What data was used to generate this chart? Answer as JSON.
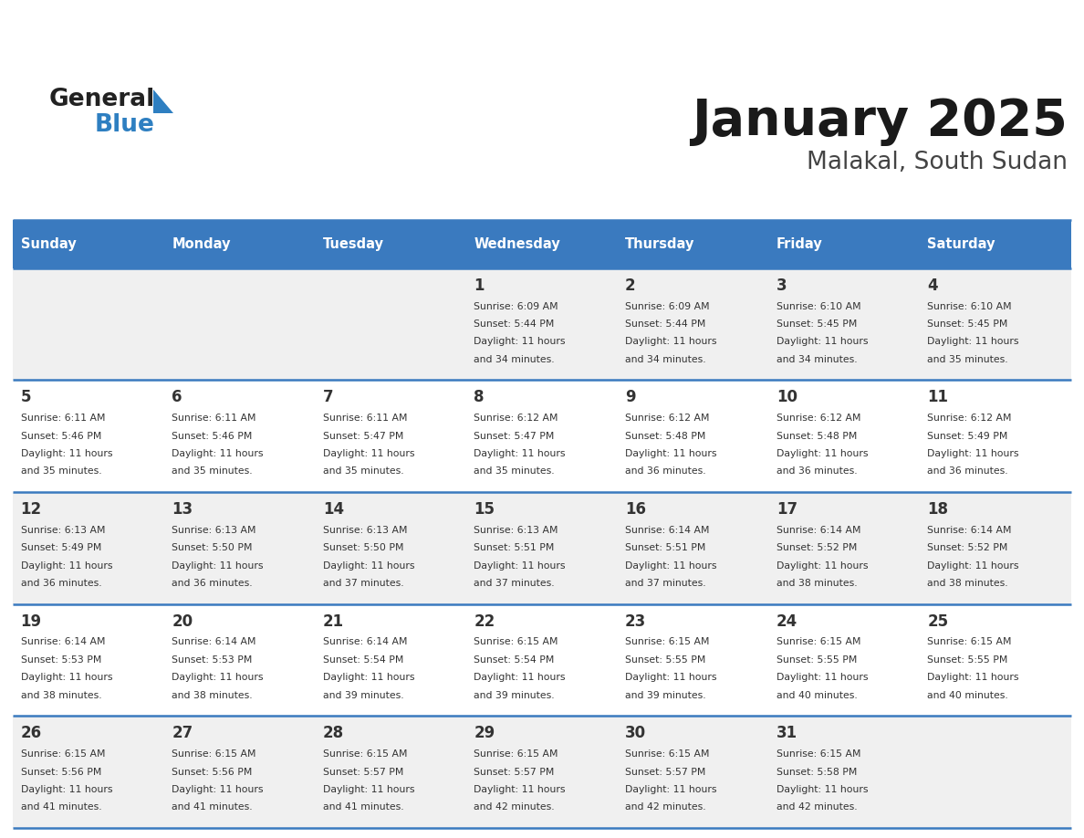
{
  "title": "January 2025",
  "subtitle": "Malakal, South Sudan",
  "header_bg": "#3a7abf",
  "header_text_color": "#ffffff",
  "row_bg_odd": "#f0f0f0",
  "row_bg_even": "#ffffff",
  "cell_text_color": "#333333",
  "border_color": "#3a7abf",
  "days_of_week": [
    "Sunday",
    "Monday",
    "Tuesday",
    "Wednesday",
    "Thursday",
    "Friday",
    "Saturday"
  ],
  "weeks": [
    [
      {
        "day": null,
        "info": null
      },
      {
        "day": null,
        "info": null
      },
      {
        "day": null,
        "info": null
      },
      {
        "day": 1,
        "info": {
          "sunrise": "6:09 AM",
          "sunset": "5:44 PM",
          "daylight_line1": "11 hours",
          "daylight_line2": "and 34 minutes."
        }
      },
      {
        "day": 2,
        "info": {
          "sunrise": "6:09 AM",
          "sunset": "5:44 PM",
          "daylight_line1": "11 hours",
          "daylight_line2": "and 34 minutes."
        }
      },
      {
        "day": 3,
        "info": {
          "sunrise": "6:10 AM",
          "sunset": "5:45 PM",
          "daylight_line1": "11 hours",
          "daylight_line2": "and 34 minutes."
        }
      },
      {
        "day": 4,
        "info": {
          "sunrise": "6:10 AM",
          "sunset": "5:45 PM",
          "daylight_line1": "11 hours",
          "daylight_line2": "and 35 minutes."
        }
      }
    ],
    [
      {
        "day": 5,
        "info": {
          "sunrise": "6:11 AM",
          "sunset": "5:46 PM",
          "daylight_line1": "11 hours",
          "daylight_line2": "and 35 minutes."
        }
      },
      {
        "day": 6,
        "info": {
          "sunrise": "6:11 AM",
          "sunset": "5:46 PM",
          "daylight_line1": "11 hours",
          "daylight_line2": "and 35 minutes."
        }
      },
      {
        "day": 7,
        "info": {
          "sunrise": "6:11 AM",
          "sunset": "5:47 PM",
          "daylight_line1": "11 hours",
          "daylight_line2": "and 35 minutes."
        }
      },
      {
        "day": 8,
        "info": {
          "sunrise": "6:12 AM",
          "sunset": "5:47 PM",
          "daylight_line1": "11 hours",
          "daylight_line2": "and 35 minutes."
        }
      },
      {
        "day": 9,
        "info": {
          "sunrise": "6:12 AM",
          "sunset": "5:48 PM",
          "daylight_line1": "11 hours",
          "daylight_line2": "and 36 minutes."
        }
      },
      {
        "day": 10,
        "info": {
          "sunrise": "6:12 AM",
          "sunset": "5:48 PM",
          "daylight_line1": "11 hours",
          "daylight_line2": "and 36 minutes."
        }
      },
      {
        "day": 11,
        "info": {
          "sunrise": "6:12 AM",
          "sunset": "5:49 PM",
          "daylight_line1": "11 hours",
          "daylight_line2": "and 36 minutes."
        }
      }
    ],
    [
      {
        "day": 12,
        "info": {
          "sunrise": "6:13 AM",
          "sunset": "5:49 PM",
          "daylight_line1": "11 hours",
          "daylight_line2": "and 36 minutes."
        }
      },
      {
        "day": 13,
        "info": {
          "sunrise": "6:13 AM",
          "sunset": "5:50 PM",
          "daylight_line1": "11 hours",
          "daylight_line2": "and 36 minutes."
        }
      },
      {
        "day": 14,
        "info": {
          "sunrise": "6:13 AM",
          "sunset": "5:50 PM",
          "daylight_line1": "11 hours",
          "daylight_line2": "and 37 minutes."
        }
      },
      {
        "day": 15,
        "info": {
          "sunrise": "6:13 AM",
          "sunset": "5:51 PM",
          "daylight_line1": "11 hours",
          "daylight_line2": "and 37 minutes."
        }
      },
      {
        "day": 16,
        "info": {
          "sunrise": "6:14 AM",
          "sunset": "5:51 PM",
          "daylight_line1": "11 hours",
          "daylight_line2": "and 37 minutes."
        }
      },
      {
        "day": 17,
        "info": {
          "sunrise": "6:14 AM",
          "sunset": "5:52 PM",
          "daylight_line1": "11 hours",
          "daylight_line2": "and 38 minutes."
        }
      },
      {
        "day": 18,
        "info": {
          "sunrise": "6:14 AM",
          "sunset": "5:52 PM",
          "daylight_line1": "11 hours",
          "daylight_line2": "and 38 minutes."
        }
      }
    ],
    [
      {
        "day": 19,
        "info": {
          "sunrise": "6:14 AM",
          "sunset": "5:53 PM",
          "daylight_line1": "11 hours",
          "daylight_line2": "and 38 minutes."
        }
      },
      {
        "day": 20,
        "info": {
          "sunrise": "6:14 AM",
          "sunset": "5:53 PM",
          "daylight_line1": "11 hours",
          "daylight_line2": "and 38 minutes."
        }
      },
      {
        "day": 21,
        "info": {
          "sunrise": "6:14 AM",
          "sunset": "5:54 PM",
          "daylight_line1": "11 hours",
          "daylight_line2": "and 39 minutes."
        }
      },
      {
        "day": 22,
        "info": {
          "sunrise": "6:15 AM",
          "sunset": "5:54 PM",
          "daylight_line1": "11 hours",
          "daylight_line2": "and 39 minutes."
        }
      },
      {
        "day": 23,
        "info": {
          "sunrise": "6:15 AM",
          "sunset": "5:55 PM",
          "daylight_line1": "11 hours",
          "daylight_line2": "and 39 minutes."
        }
      },
      {
        "day": 24,
        "info": {
          "sunrise": "6:15 AM",
          "sunset": "5:55 PM",
          "daylight_line1": "11 hours",
          "daylight_line2": "and 40 minutes."
        }
      },
      {
        "day": 25,
        "info": {
          "sunrise": "6:15 AM",
          "sunset": "5:55 PM",
          "daylight_line1": "11 hours",
          "daylight_line2": "and 40 minutes."
        }
      }
    ],
    [
      {
        "day": 26,
        "info": {
          "sunrise": "6:15 AM",
          "sunset": "5:56 PM",
          "daylight_line1": "11 hours",
          "daylight_line2": "and 41 minutes."
        }
      },
      {
        "day": 27,
        "info": {
          "sunrise": "6:15 AM",
          "sunset": "5:56 PM",
          "daylight_line1": "11 hours",
          "daylight_line2": "and 41 minutes."
        }
      },
      {
        "day": 28,
        "info": {
          "sunrise": "6:15 AM",
          "sunset": "5:57 PM",
          "daylight_line1": "11 hours",
          "daylight_line2": "and 41 minutes."
        }
      },
      {
        "day": 29,
        "info": {
          "sunrise": "6:15 AM",
          "sunset": "5:57 PM",
          "daylight_line1": "11 hours",
          "daylight_line2": "and 42 minutes."
        }
      },
      {
        "day": 30,
        "info": {
          "sunrise": "6:15 AM",
          "sunset": "5:57 PM",
          "daylight_line1": "11 hours",
          "daylight_line2": "and 42 minutes."
        }
      },
      {
        "day": 31,
        "info": {
          "sunrise": "6:15 AM",
          "sunset": "5:58 PM",
          "daylight_line1": "11 hours",
          "daylight_line2": "and 42 minutes."
        }
      },
      {
        "day": null,
        "info": null
      }
    ]
  ],
  "logo_general_color": "#222222",
  "logo_blue_color": "#2e7fc1",
  "title_color": "#1a1a1a",
  "subtitle_color": "#444444"
}
